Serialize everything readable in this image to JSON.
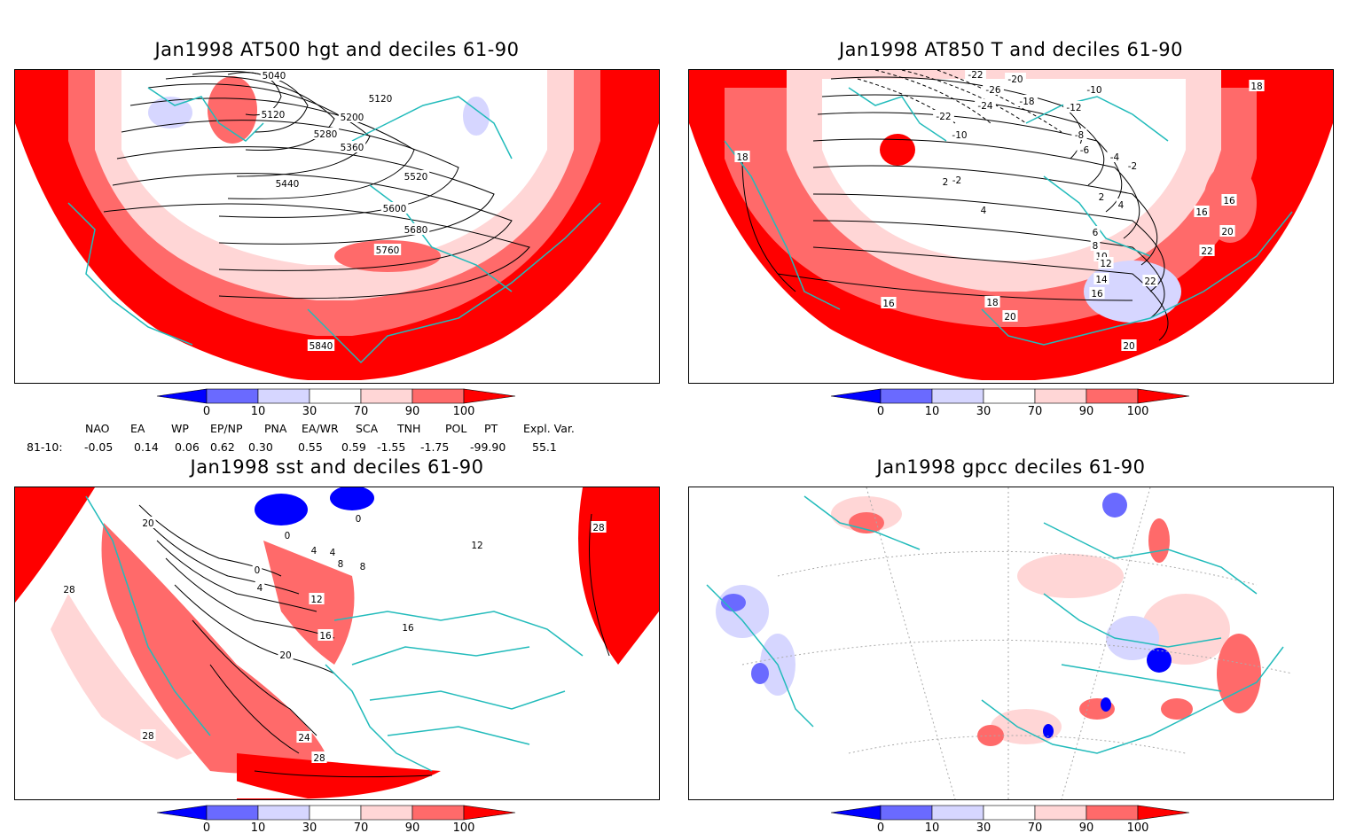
{
  "colors": {
    "deep_blue": "#0000ff",
    "mid_blue": "#6a6aff",
    "light_blue": "#d6d6ff",
    "white": "#ffffff",
    "light_red": "#ffd6d6",
    "mid_red": "#ff6a6a",
    "deep_red": "#ff0000",
    "coast": "#22bbbb",
    "contour": "#000000"
  },
  "colorbar": {
    "ticks": [
      "0",
      "10",
      "30",
      "70",
      "90",
      "100"
    ]
  },
  "panels": [
    {
      "id": "at500",
      "title": "Jan1998 AT500 hgt and deciles 61-90",
      "contour_labels": [
        "5040",
        "5120",
        "5120",
        "5200",
        "5280",
        "5360",
        "5440",
        "5520",
        "5600",
        "5680",
        "5760",
        "5840"
      ]
    },
    {
      "id": "at850",
      "title": "Jan1998 AT850 T and deciles 61-90",
      "contour_labels": [
        "-22",
        "-20",
        "-26",
        "-24",
        "-22",
        "-18",
        "-12",
        "-10",
        "-10",
        "-8",
        "-6",
        "-4",
        "-2",
        "-2",
        "2",
        "2",
        "4",
        "4",
        "6",
        "8",
        "10",
        "12",
        "14",
        "16",
        "16",
        "16",
        "16",
        "18",
        "18",
        "18",
        "20",
        "20",
        "20",
        "22",
        "22"
      ]
    },
    {
      "id": "sst",
      "title": "Jan1998 sst and deciles 61-90",
      "contour_labels": [
        "20",
        "0",
        "0",
        "0",
        "4",
        "4",
        "4",
        "8",
        "8",
        "12",
        "12",
        "16",
        "16",
        "20",
        "24",
        "28",
        "28",
        "28",
        "28"
      ]
    },
    {
      "id": "gpcc",
      "title": "Jan1998 gpcc deciles 61-90",
      "contour_labels": []
    }
  ],
  "indices": {
    "headers": [
      "NAO",
      "EA",
      "WP",
      "EP/NP",
      "PNA",
      "EA/WR",
      "SCA",
      "TNH",
      "POL",
      "PT",
      "Expl. Var."
    ],
    "row_label": "81-10:",
    "values": [
      "-0.05",
      "0.14",
      "0.06",
      "0.62",
      "0.30",
      "0.55",
      "0.59",
      "-1.55",
      "-1.75",
      "-99.90",
      "55.1"
    ]
  }
}
